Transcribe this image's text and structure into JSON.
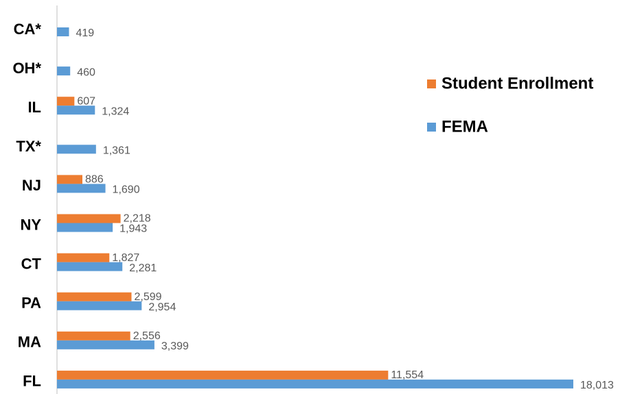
{
  "chart_data": {
    "type": "bar",
    "orientation": "horizontal",
    "categories": [
      "CA*",
      "OH*",
      "IL",
      "TX*",
      "NJ",
      "NY",
      "CT",
      "PA",
      "MA",
      "FL"
    ],
    "series": [
      {
        "name": "Student Enrollment",
        "color": "#ED7D31",
        "values": [
          null,
          null,
          607,
          null,
          886,
          2218,
          1827,
          2599,
          2556,
          11554
        ],
        "value_labels": [
          null,
          null,
          "607",
          null,
          "886",
          "2,218",
          "1,827",
          "2,599",
          "2,556",
          "11,554"
        ]
      },
      {
        "name": "FEMA",
        "color": "#5B9BD5",
        "values": [
          419,
          460,
          1324,
          1361,
          1690,
          1943,
          2281,
          2954,
          3399,
          18013
        ],
        "value_labels": [
          "419",
          "460",
          "1,324",
          "1,361",
          "1,690",
          "1,943",
          "2,281",
          "2,954",
          "3,399",
          "18,013"
        ]
      }
    ],
    "legend": "right"
  }
}
